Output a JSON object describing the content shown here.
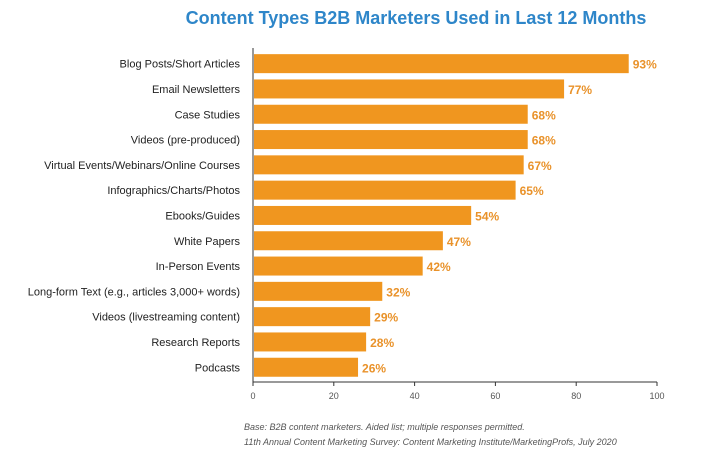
{
  "chart_data": {
    "type": "bar",
    "orientation": "horizontal",
    "title": "Content Types B2B Marketers Used in Last 12 Months",
    "categories": [
      "Blog Posts/Short Articles",
      "Email Newsletters",
      "Case Studies",
      "Videos (pre-produced)",
      "Virtual Events/Webinars/Online Courses",
      "Infographics/Charts/Photos",
      "Ebooks/Guides",
      "White Papers",
      "In-Person Events",
      "Long-form Text (e.g., articles 3,000+ words)",
      "Videos (livestreaming content)",
      "Research Reports",
      "Podcasts"
    ],
    "values": [
      93,
      77,
      68,
      68,
      67,
      65,
      54,
      47,
      42,
      32,
      29,
      28,
      26
    ],
    "value_labels": [
      "93%",
      "77%",
      "68%",
      "68%",
      "67%",
      "65%",
      "54%",
      "47%",
      "42%",
      "32%",
      "29%",
      "28%",
      "26%"
    ],
    "xlim": [
      0,
      100
    ],
    "xticks": [
      "0",
      "20",
      "40",
      "60",
      "80",
      "100"
    ],
    "xlabel": "",
    "ylabel": "",
    "grid": false,
    "colors": {
      "bar": "#f0961f",
      "value_label": "#e9922a",
      "title": "#2e86c9"
    }
  },
  "footnotes": {
    "base": "Base: B2B content marketers. Aided list; multiple responses permitted.",
    "source": "11th Annual Content Marketing Survey: Content Marketing Institute/MarketingProfs, July 2020"
  }
}
